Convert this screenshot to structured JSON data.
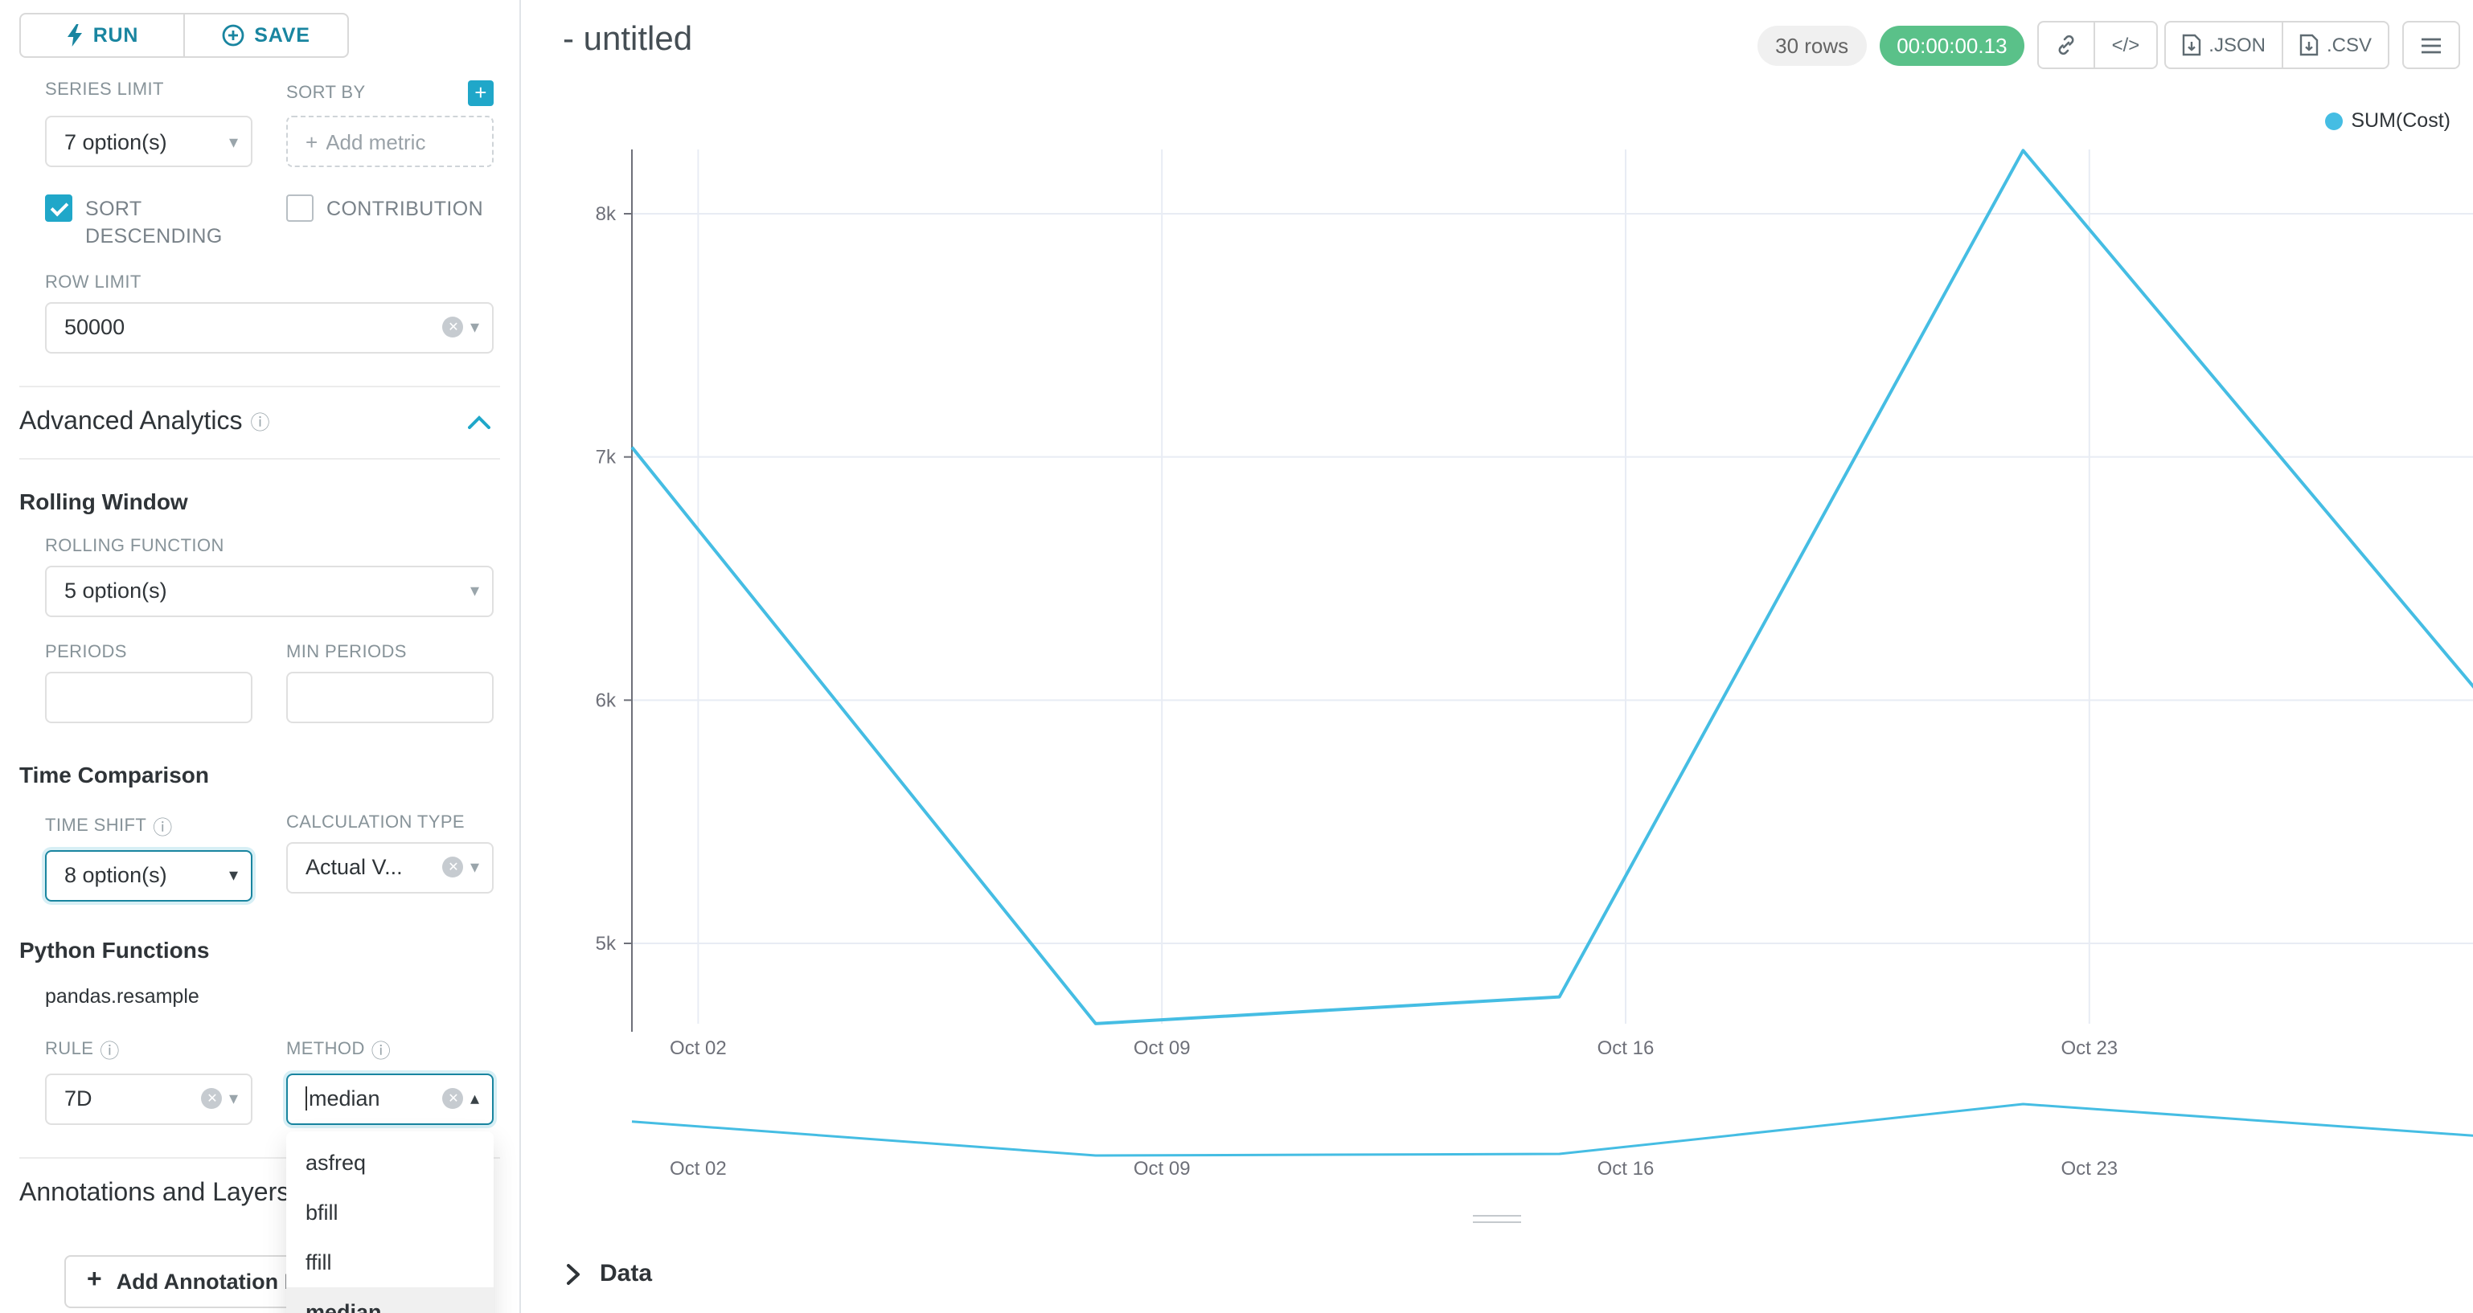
{
  "colors": {
    "primary": "#20a7c9",
    "primary_dark": "#1985a0",
    "line": "#45bde3",
    "badge_green": "#5ac189",
    "grid": "#e8ecf4",
    "axis": "#6E7079"
  },
  "icons": {
    "caret_down": "▾",
    "caret_up": "▴",
    "clear": "✕",
    "plus": "+",
    "info": "ⓘ",
    "code": "</>"
  },
  "toolbar": {
    "run": "RUN",
    "save": "SAVE"
  },
  "controls": {
    "series_limit_label": "SERIES LIMIT",
    "series_limit_value": "7 option(s)",
    "sort_by_label": "SORT BY",
    "sort_by_placeholder": "Add metric",
    "sort_descending_label": "SORT DESCENDING",
    "sort_descending_checked": true,
    "contribution_label": "CONTRIBUTION",
    "contribution_checked": false,
    "row_limit_label": "ROW LIMIT",
    "row_limit_value": "50000",
    "advanced_analytics_title": "Advanced Analytics",
    "rolling_window_title": "Rolling Window",
    "rolling_function_label": "ROLLING FUNCTION",
    "rolling_function_value": "5 option(s)",
    "periods_label": "PERIODS",
    "periods_value": "",
    "min_periods_label": "MIN PERIODS",
    "min_periods_value": "",
    "time_comparison_title": "Time Comparison",
    "time_shift_label": "TIME SHIFT",
    "time_shift_value": "8 option(s)",
    "calculation_type_label": "CALCULATION TYPE",
    "calculation_type_value": "Actual V...",
    "python_functions_title": "Python Functions",
    "python_functions_subtitle": "pandas.resample",
    "rule_label": "RULE",
    "rule_value": "7D",
    "method_label": "METHOD",
    "method_value": "median",
    "annotations_title": "Annotations and Layers",
    "add_annotation_label": "Add Annotation Layer"
  },
  "method_dropdown": {
    "options": [
      "asfreq",
      "bfill",
      "ffill",
      "median"
    ],
    "selected": "median"
  },
  "header": {
    "title": "- untitled",
    "rows_badge": "30 rows",
    "timer_badge": "00:00:00.13",
    "json_label": ".JSON",
    "csv_label": ".CSV"
  },
  "chart_data": {
    "type": "line",
    "title": "",
    "legend": "SUM(Cost)",
    "legend_position": "top-right",
    "grid": true,
    "ylim": [
      4600,
      8400
    ],
    "y_ticks": [
      {
        "label": "8k",
        "value": 8000
      },
      {
        "label": "7k",
        "value": 7000
      },
      {
        "label": "6k",
        "value": 6000
      },
      {
        "label": "5k",
        "value": 5000
      }
    ],
    "x_ticks": [
      {
        "label": "Oct 02",
        "day": 1
      },
      {
        "label": "Oct 09",
        "day": 8
      },
      {
        "label": "Oct 16",
        "day": 15
      },
      {
        "label": "Oct 23",
        "day": 22
      }
    ],
    "series": [
      {
        "name": "SUM(Cost)",
        "color": "#45bde3",
        "x": [
          "Oct 01",
          "Oct 08",
          "Oct 15",
          "Oct 22",
          "Oct 29"
        ],
        "days": [
          0,
          7,
          14,
          21,
          28
        ],
        "values": [
          7040,
          4670,
          4780,
          8260,
          5990
        ]
      }
    ],
    "mini_chart": "same series shown as x-axis brush preview below main chart"
  },
  "data_panel": {
    "title": "Data"
  }
}
